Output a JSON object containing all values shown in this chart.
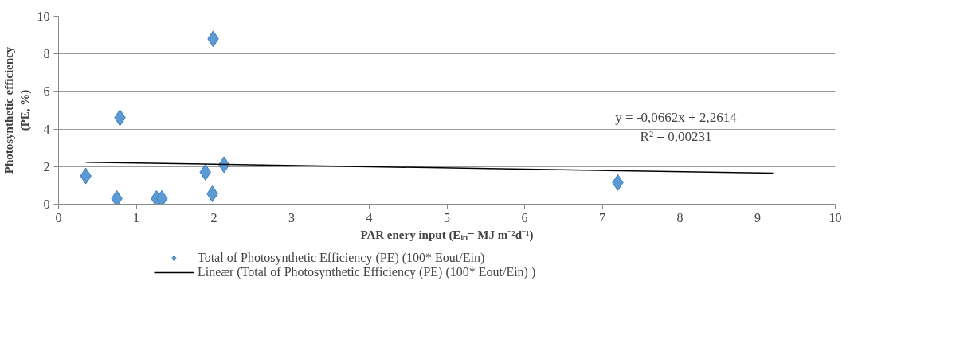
{
  "chart_data": {
    "type": "scatter",
    "xlabel": "PAR enery input (Eᵢₙ= MJ m⁻²d⁻¹)",
    "ylabel": "Photosynthetic efficiency\n(PE, %)",
    "xlim": [
      0,
      10
    ],
    "xticks": [
      0,
      1,
      2,
      3,
      4,
      5,
      6,
      7,
      8,
      9,
      10
    ],
    "ylim": [
      0,
      10
    ],
    "yticks": [
      0,
      2,
      4,
      6,
      8,
      10
    ],
    "grid": "y",
    "legend": "bottom",
    "series": [
      {
        "name": "Total of Photosynthetic Efficiency (PE) (100* Eout/Ein)",
        "marker": "diamond",
        "color": "#5b9bd5",
        "x": [
          0.35,
          0.75,
          0.79,
          1.26,
          1.33,
          1.89,
          1.98,
          1.99,
          2.13,
          7.2
        ],
        "values": [
          1.5,
          0.3,
          4.6,
          0.3,
          0.3,
          1.7,
          0.55,
          8.8,
          2.1,
          1.15
        ]
      },
      {
        "name": "Lineær (Total of Photosynthetic Efficiency (PE) (100* Eout/Ein) )",
        "type": "line",
        "color": "#000000",
        "line_style": "solid",
        "x": [
          0.35,
          9.2
        ],
        "values": [
          2.24,
          1.65
        ]
      }
    ],
    "annotations": [
      "y = -0,0662x + 2,2614",
      "R² = 0,00231"
    ]
  }
}
